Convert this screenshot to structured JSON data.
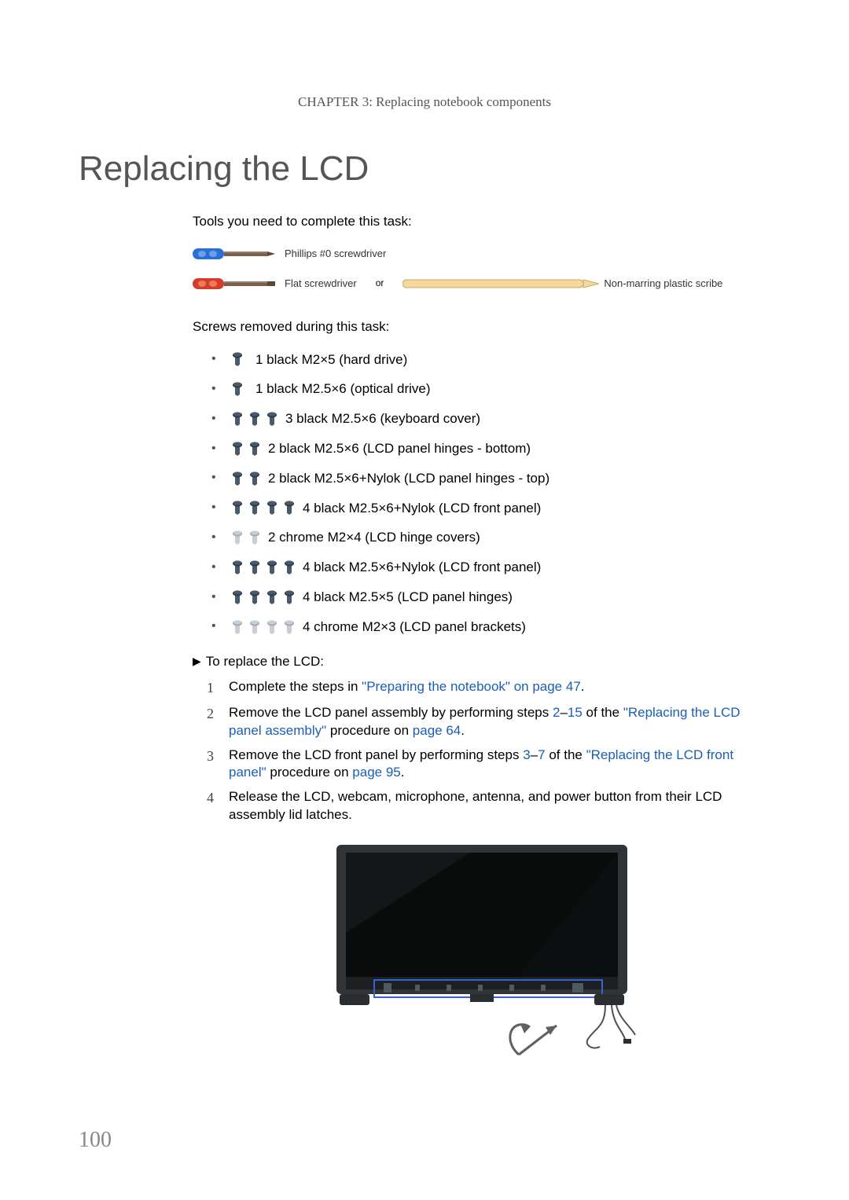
{
  "chapter_header": "CHAPTER 3: Replacing notebook components",
  "title": "Replacing the LCD",
  "tools_intro": "Tools you need to complete this task:",
  "tools": {
    "phillips_label": "Phillips #0 screwdriver",
    "flat_label": "Flat screwdriver",
    "or_word": "or",
    "scribe_label": "Non-marring plastic scribe",
    "blue_handle": "#2a6fd6",
    "red_handle": "#d63c2a",
    "shaft": "#7a5f4a",
    "shaft_dark": "#5a4738",
    "scribe_fill": "#f5d89a",
    "scribe_stroke": "#c5aa6a"
  },
  "screws_intro": "Screws removed during this task:",
  "screw_colors": {
    "black_fill": "#4a5a6a",
    "black_head": "#2a3a4a",
    "chrome_fill": "#c8ced6",
    "chrome_head": "#9ea8b4"
  },
  "screw_items": [
    {
      "count": 1,
      "type": "black",
      "text": "1 black M2×5 (hard drive)"
    },
    {
      "count": 1,
      "type": "black",
      "text": "1 black M2.5×6 (optical drive)"
    },
    {
      "count": 3,
      "type": "black",
      "text": "3 black M2.5×6 (keyboard cover)"
    },
    {
      "count": 2,
      "type": "black",
      "text": "2 black M2.5×6 (LCD panel hinges - bottom)"
    },
    {
      "count": 2,
      "type": "black",
      "text": "2 black M2.5×6+Nylok (LCD panel hinges - top)"
    },
    {
      "count": 4,
      "type": "black",
      "text": "4 black M2.5×6+Nylok (LCD front panel)"
    },
    {
      "count": 2,
      "type": "chrome",
      "text": "2 chrome M2×4 (LCD hinge covers)"
    },
    {
      "count": 4,
      "type": "black",
      "text": "4 black M2.5×6+Nylok (LCD front panel)"
    },
    {
      "count": 4,
      "type": "black",
      "text": "4 black M2.5×5 (LCD panel hinges)"
    },
    {
      "count": 4,
      "type": "chrome",
      "text": "4 chrome M2×3 (LCD panel brackets)"
    }
  ],
  "proc_title": "To replace the LCD:",
  "steps": [
    {
      "n": "1",
      "parts": [
        {
          "t": "Complete the steps in "
        },
        {
          "t": "\"Preparing the notebook\" on page 47",
          "link": true
        },
        {
          "t": "."
        }
      ]
    },
    {
      "n": "2",
      "parts": [
        {
          "t": "Remove the LCD panel assembly by performing steps "
        },
        {
          "t": "2",
          "link": true
        },
        {
          "t": "–"
        },
        {
          "t": "15",
          "link": true
        },
        {
          "t": " of the "
        },
        {
          "t": "\"Replacing the LCD panel assembly\"",
          "link": true
        },
        {
          "t": " procedure on "
        },
        {
          "t": "page 64",
          "link": true
        },
        {
          "t": "."
        }
      ]
    },
    {
      "n": "3",
      "parts": [
        {
          "t": "Remove the LCD front panel by performing steps "
        },
        {
          "t": "3",
          "link": true
        },
        {
          "t": "–"
        },
        {
          "t": "7",
          "link": true
        },
        {
          "t": " of the "
        },
        {
          "t": "\"Replacing the LCD front panel\"",
          "link": true
        },
        {
          "t": " procedure on "
        },
        {
          "t": "page 95",
          "link": true
        },
        {
          "t": "."
        }
      ]
    },
    {
      "n": "4",
      "parts": [
        {
          "t": "Release the LCD, webcam, microphone, antenna, and power button from their LCD assembly lid latches."
        }
      ]
    }
  ],
  "figure": {
    "bezel": "#303436",
    "screen": "#0a0c0c",
    "screen_glare1": "#1a2020",
    "screen_glare2": "#0e1212",
    "highlight_stroke": "#3a5fd6",
    "bracket": "#2a2e30",
    "wire": "#505050",
    "arrow": "#606060"
  },
  "page_number": "100"
}
